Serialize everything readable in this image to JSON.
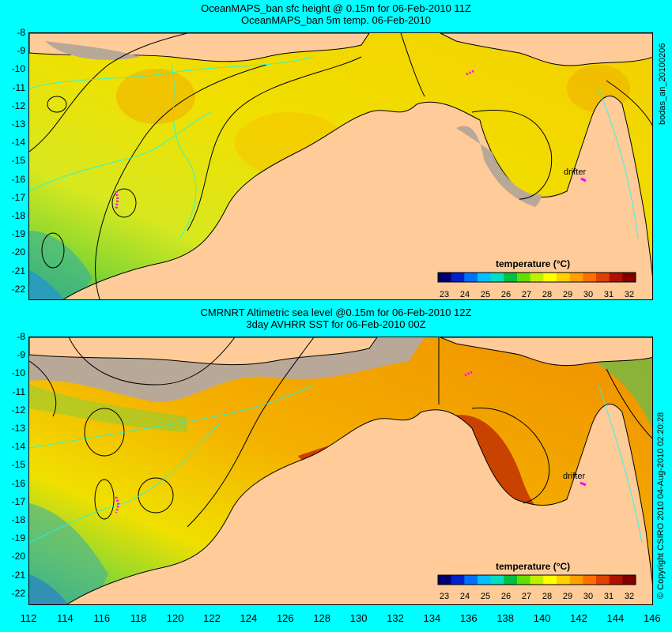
{
  "panel1": {
    "title_line1": "OceanMAPS_ban sfc height @ 0.15m for 06-Feb-2010 11Z",
    "title_line2": "OceanMAPS_ban 5m temp. 06-Feb-2010",
    "side_label": "bodas_an_20100206",
    "drifter_label": "drifter"
  },
  "panel2": {
    "title_line1": "CMRNRT Altimetric sea level  @0.15m  for 06-Feb-2010 12Z",
    "title_line2": "3day AVHRR SST for 06-Feb-2010 00Z",
    "side_label": "© Copyright CSIRO 2010  04-Aug-2010 02:20:28",
    "drifter_label": "drifter"
  },
  "colorbar": {
    "title": "temperature (°C)",
    "ticks": [
      "23",
      "24",
      "25",
      "26",
      "27",
      "28",
      "29",
      "30",
      "31",
      "32"
    ],
    "colors": [
      "#00006e",
      "#0020d0",
      "#0070ff",
      "#00c0ff",
      "#00e0c0",
      "#00c040",
      "#60e000",
      "#c0f000",
      "#ffff00",
      "#ffd000",
      "#ffa000",
      "#ff7000",
      "#e04000",
      "#b01000",
      "#800000"
    ]
  },
  "axes": {
    "y_ticks": [
      "-8",
      "-9",
      "-10",
      "-11",
      "-12",
      "-13",
      "-14",
      "-15",
      "-16",
      "-17",
      "-18",
      "-19",
      "-20",
      "-21",
      "-22"
    ],
    "x_ticks": [
      "112",
      "114",
      "116",
      "118",
      "120",
      "122",
      "124",
      "126",
      "128",
      "130",
      "132",
      "134",
      "136",
      "138",
      "140",
      "142",
      "144",
      "146"
    ]
  },
  "colors": {
    "background": "#00ffff",
    "land": "#ffcc99",
    "missing": "#b8a898",
    "contour": "#00ffff",
    "drifter": "#ff00ff"
  }
}
